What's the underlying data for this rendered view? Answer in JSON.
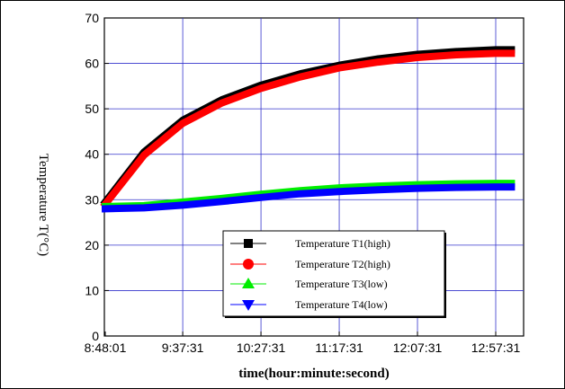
{
  "chart_data": {
    "type": "line",
    "xlabel": "time(hour:minute:second)",
    "ylabel": "Temperature T(°C)",
    "ylim": [
      0,
      70
    ],
    "yticks": [
      0,
      10,
      20,
      30,
      40,
      50,
      60,
      70
    ],
    "xticks": [
      "8:48:01",
      "9:37:31",
      "10:27:31",
      "11:17:31",
      "12:07:31",
      "12:57:31"
    ],
    "grid": true,
    "legend_position": "lower-center",
    "x": [
      "8:48:01",
      "9:12:46",
      "9:37:31",
      "10:02:31",
      "10:27:31",
      "10:52:31",
      "11:17:31",
      "11:42:31",
      "12:07:31",
      "12:32:31",
      "12:57:31",
      "13:07:31"
    ],
    "series": [
      {
        "name": "Temperature  T1(high)",
        "color": "#000000",
        "marker": "square",
        "values": [
          29.5,
          40.5,
          47.5,
          52.0,
          55.2,
          57.7,
          59.6,
          61.0,
          62.0,
          62.6,
          63.0,
          63.0
        ]
      },
      {
        "name": "Temperature  T2(high)",
        "color": "#ff0000",
        "marker": "circle",
        "values": [
          29.0,
          39.8,
          46.8,
          51.3,
          54.5,
          57.0,
          59.0,
          60.3,
          61.3,
          61.9,
          62.2,
          62.2
        ]
      },
      {
        "name": "Temperature  T3(low)",
        "color": "#00ee00",
        "marker": "triangle-up",
        "values": [
          28.5,
          28.7,
          29.5,
          30.3,
          31.2,
          32.0,
          32.6,
          33.0,
          33.3,
          33.5,
          33.6,
          33.6
        ]
      },
      {
        "name": "Temperature  T4(low)",
        "color": "#0000ff",
        "marker": "triangle-down",
        "values": [
          28.0,
          28.2,
          28.8,
          29.6,
          30.5,
          31.3,
          31.8,
          32.2,
          32.5,
          32.7,
          32.8,
          32.8
        ]
      }
    ]
  }
}
